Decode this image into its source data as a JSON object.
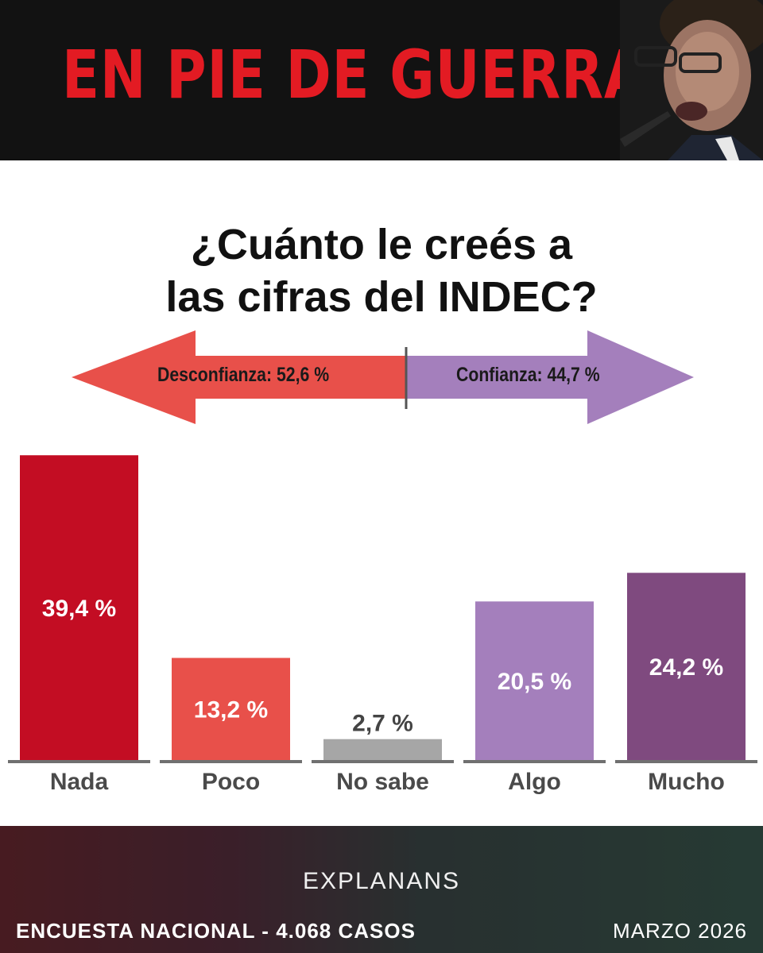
{
  "header": {
    "title": "EN PIE DE GUERRA"
  },
  "question": {
    "line1": "¿Cuánto le creés a",
    "line2": "las cifras del INDEC?"
  },
  "arrow": {
    "left_label": "Desconfianza: 52,6 %",
    "right_label": "Confianza: 44,7 %",
    "left_color": "#e8504a",
    "right_color": "#a47fbc"
  },
  "chart_data": {
    "type": "bar",
    "categories": [
      "Nada",
      "Poco",
      "No sabe",
      "Algo",
      "Mucho"
    ],
    "values": [
      39.4,
      13.2,
      2.7,
      20.5,
      24.2
    ],
    "value_labels": [
      "39,4 %",
      "13,2 %",
      "2,7 %",
      "20,5 %",
      "24,2 %"
    ],
    "colors": [
      "#c30d23",
      "#e8504a",
      "#a6a6a6",
      "#a47fbc",
      "#7f4a7f"
    ],
    "title": "¿Cuánto le creés a las cifras del INDEC?",
    "xlabel": "",
    "ylabel": "",
    "ylim": [
      0,
      40
    ],
    "grid": false
  },
  "footer": {
    "brand": "EXPLANANS",
    "source": "ENCUESTA NACIONAL - 4.068 CASOS",
    "date": "MARZO 2026"
  }
}
